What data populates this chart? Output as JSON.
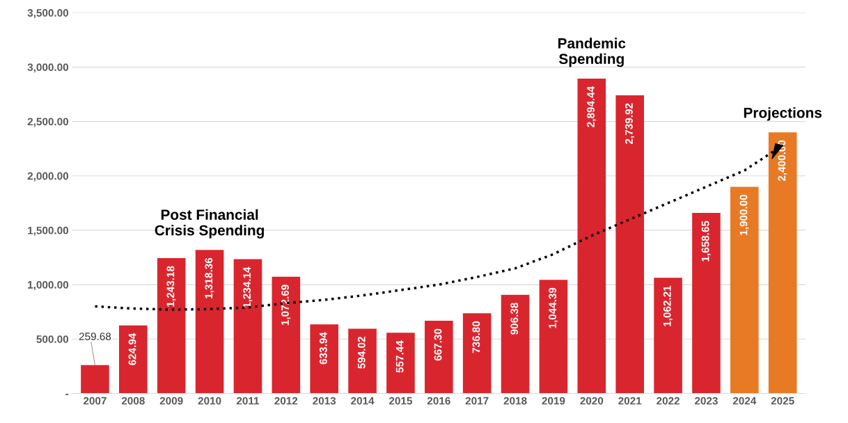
{
  "chart_data": {
    "type": "bar",
    "categories": [
      "2007",
      "2008",
      "2009",
      "2010",
      "2011",
      "2012",
      "2013",
      "2014",
      "2015",
      "2016",
      "2017",
      "2018",
      "2019",
      "2020",
      "2021",
      "2022",
      "2023",
      "2024",
      "2025"
    ],
    "series": [
      {
        "values": [
          259.68,
          624.94,
          1243.18,
          1318.36,
          1234.14,
          1072.69,
          633.94,
          594.02,
          557.44,
          667.3,
          736.8,
          906.38,
          1044.39,
          2894.44,
          2739.92,
          1062.21,
          1658.65,
          1900.0,
          2400.0
        ],
        "colors": [
          "#d9262e",
          "#d9262e",
          "#d9262e",
          "#d9262e",
          "#d9262e",
          "#d9262e",
          "#d9262e",
          "#d9262e",
          "#d9262e",
          "#d9262e",
          "#d9262e",
          "#d9262e",
          "#d9262e",
          "#d9262e",
          "#d9262e",
          "#d9262e",
          "#d9262e",
          "#e87a25",
          "#e87a25"
        ],
        "value_labels": [
          "259.68",
          "624.94",
          "1,243.18",
          "1,318.36",
          "1,234.14",
          "1,072.69",
          "633.94",
          "594.02",
          "557.44",
          "667.30",
          "736.80",
          "906.38",
          "1,044.39",
          "2,894.44",
          "2,739.92",
          "1,062.21",
          "1,658.65",
          "1,900.00",
          "2,400.00"
        ]
      },
      {
        "type": "line",
        "color": "#000000",
        "line_style": "dotted",
        "values": [
          800,
          780,
          770,
          775,
          790,
          830,
          860,
          900,
          950,
          1000,
          1070,
          1150,
          1280,
          1450,
          1600,
          1750,
          1900,
          2050,
          2280
        ]
      }
    ],
    "ylim": [
      0,
      3500
    ],
    "yticks": [
      {
        "value": 0,
        "label": "-"
      },
      {
        "value": 500,
        "label": "500.00"
      },
      {
        "value": 1000,
        "label": "1,000.00"
      },
      {
        "value": 1500,
        "label": "1,500.00"
      },
      {
        "value": 2000,
        "label": "2,000.00"
      },
      {
        "value": 2500,
        "label": "2,500.00"
      },
      {
        "value": 3000,
        "label": "3,000.00"
      },
      {
        "value": 3500,
        "label": "3,500.00"
      }
    ],
    "grid": "y",
    "annotations": [
      {
        "text": "Post Financial\nCrisis Spending",
        "x": "2010",
        "y": 1318.36
      },
      {
        "text": "Pandemic\nSpending",
        "x": "2020",
        "y": 2894.44
      },
      {
        "text": "Projections",
        "x": "2025",
        "y": 2400.0
      }
    ]
  }
}
